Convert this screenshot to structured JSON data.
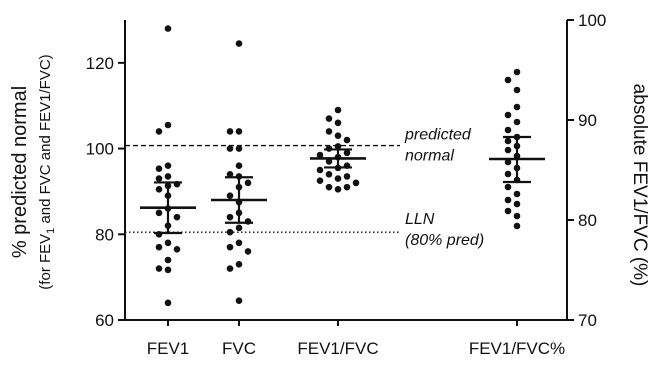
{
  "chart_data": {
    "type": "scatter",
    "style": "dot plot with mean and error bars, dual y-axis",
    "left_axis": {
      "label_main": "% predicted normal",
      "label_sub_parts": [
        "(for FEV",
        "1",
        " and  FVC and FEV1/FVC)"
      ],
      "ylim": [
        60,
        130
      ],
      "ticks": [
        60,
        80,
        100,
        120
      ],
      "tick_labels": [
        "60",
        "80",
        "100",
        "120"
      ]
    },
    "right_axis": {
      "label": "absolute FEV1/FVC (%)",
      "ylim": [
        70,
        100
      ],
      "ticks": [
        70,
        80,
        90,
        100
      ],
      "tick_labels": [
        "70",
        "80",
        "90",
        "100"
      ]
    },
    "categories": [
      "FEV1",
      "FVC",
      "FEV1/FVC",
      "FEV1/FVC%"
    ],
    "grid": false,
    "reference_lines": [
      {
        "name": "predicted normal",
        "value": 100.7,
        "style": "dashed",
        "axis": "left",
        "label_lines": [
          "predicted",
          "normal"
        ]
      },
      {
        "name": "LLN",
        "value": 80.5,
        "style": "dotted",
        "axis": "left",
        "label_lines": [
          "LLN",
          "(80% pred)"
        ]
      }
    ],
    "series": [
      {
        "category": "FEV1",
        "axis": "left",
        "mean": 86.2,
        "error_high": 92.1,
        "error_low": 80.3,
        "points": [
          128.0,
          105.5,
          104.0,
          96.0,
          95.3,
          93.5,
          93.0,
          91.7,
          91.3,
          90.5,
          89.0,
          86.0,
          85.0,
          84.0,
          82.0,
          80.0,
          78.0,
          77.0,
          76.5,
          74.0,
          72.0,
          71.7,
          64.0
        ]
      },
      {
        "category": "FVC",
        "axis": "left",
        "mean": 88.0,
        "error_high": 93.3,
        "error_low": 82.7,
        "points": [
          124.5,
          104.0,
          104.0,
          100.0,
          100.0,
          96.0,
          94.0,
          93.5,
          92.0,
          91.0,
          89.0,
          87.5,
          85.0,
          84.0,
          83.0,
          81.5,
          80.5,
          78.0,
          77.0,
          76.0,
          73.0,
          72.0,
          64.5
        ]
      },
      {
        "category": "FEV1/FVC",
        "axis": "left",
        "mean": 97.7,
        "error_high": 99.8,
        "error_low": 95.6,
        "points": [
          109.0,
          107.0,
          106.0,
          104.0,
          103.0,
          102.0,
          100.5,
          100.0,
          99.0,
          98.5,
          98.0,
          97.0,
          96.0,
          95.5,
          95.0,
          94.0,
          93.5,
          93.0,
          92.5,
          92.0,
          91.0,
          91.0,
          90.5
        ]
      },
      {
        "category": "FEV1/FVC%",
        "axis": "right",
        "mean": 86.1,
        "error_high": 88.3,
        "error_low": 83.8,
        "points": [
          94.8,
          94.0,
          93.0,
          91.3,
          90.5,
          89.8,
          89.0,
          88.3,
          87.9,
          87.4,
          87.0,
          86.4,
          85.8,
          85.2,
          84.6,
          84.0,
          83.3,
          82.6,
          82.0,
          81.6,
          80.9,
          80.4,
          79.4
        ]
      }
    ]
  }
}
